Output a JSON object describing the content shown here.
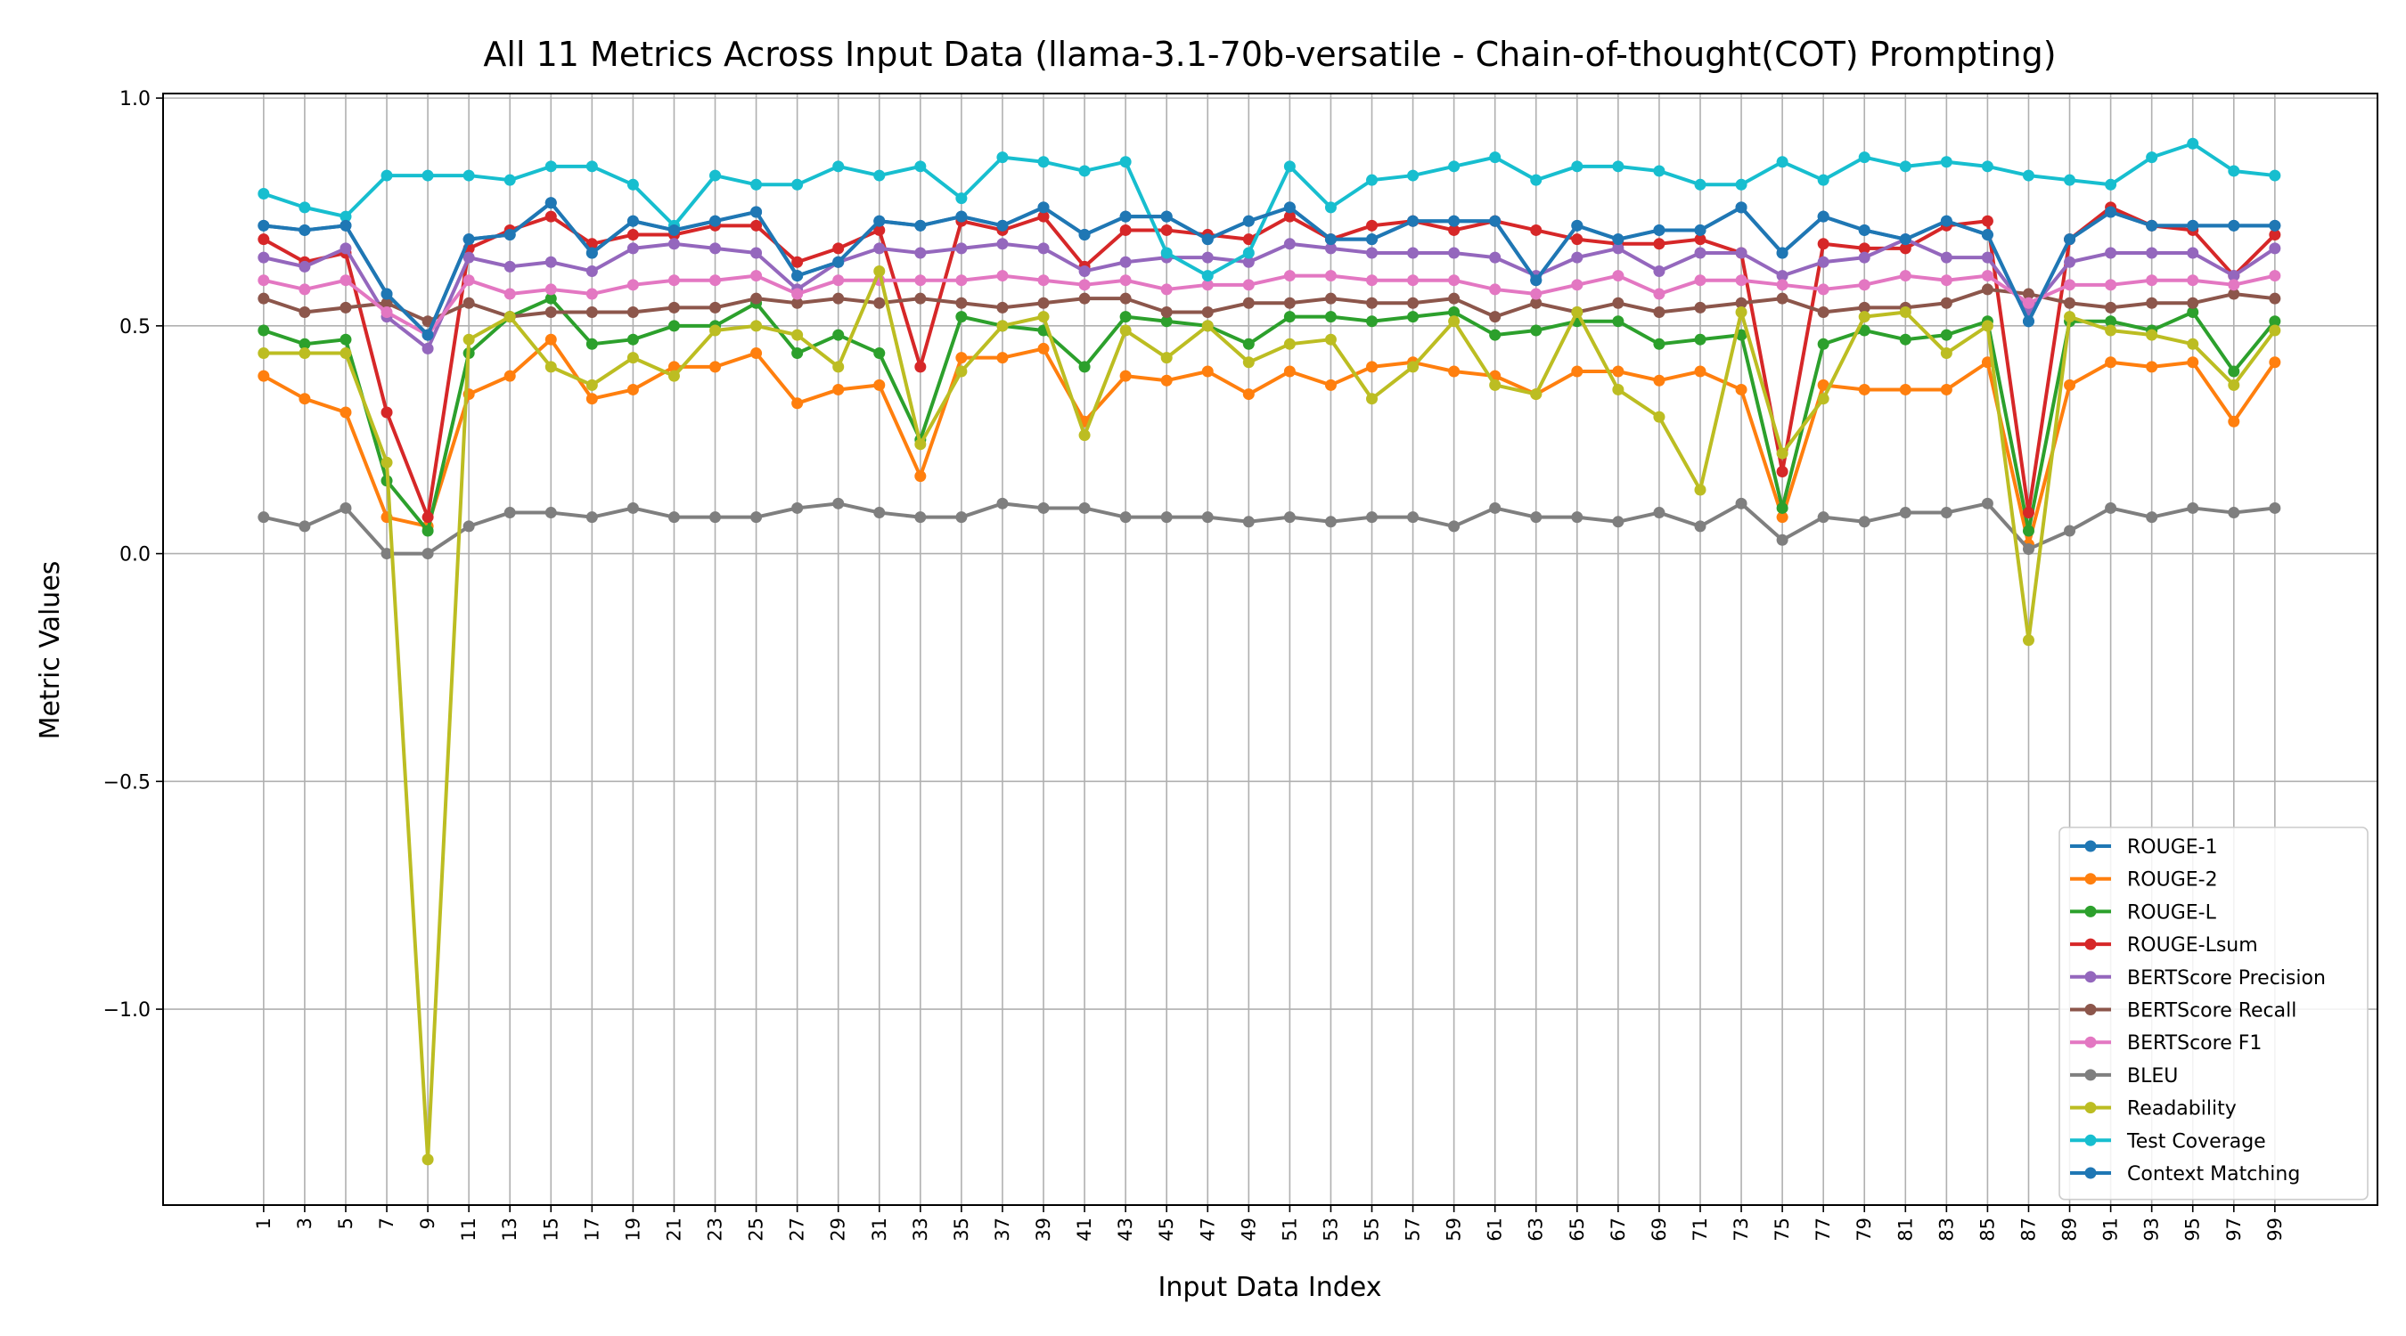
{
  "chart_data": {
    "type": "line",
    "title": "All 11 Metrics Across Input Data (llama-3.1-70b-versatile - Chain-of-thought(COT) Prompting)",
    "xlabel": "Input Data Index",
    "ylabel": "Metric Values",
    "ylim": [
      -1.43,
      1.01
    ],
    "y_ticks": [
      -1.0,
      -0.5,
      0.0,
      0.5,
      1.0
    ],
    "y_tick_labels": [
      "−1.0",
      "−0.5",
      "0.0",
      "0.5",
      "1.0"
    ],
    "x_ticks": [
      1,
      3,
      5,
      7,
      9,
      11,
      13,
      15,
      17,
      19,
      21,
      23,
      25,
      27,
      29,
      31,
      33,
      35,
      37,
      39,
      41,
      43,
      45,
      47,
      49,
      51,
      53,
      55,
      57,
      59,
      61,
      63,
      65,
      67,
      69,
      71,
      73,
      75,
      77,
      79,
      81,
      83,
      85,
      87,
      89,
      91,
      93,
      95,
      97,
      99
    ],
    "x": [
      1,
      3,
      5,
      7,
      9,
      11,
      13,
      15,
      17,
      19,
      21,
      23,
      25,
      27,
      29,
      31,
      33,
      35,
      37,
      39,
      41,
      43,
      45,
      47,
      49,
      51,
      53,
      55,
      57,
      59,
      61,
      63,
      65,
      67,
      69,
      71,
      73,
      75,
      77,
      79,
      81,
      83,
      85,
      87,
      89,
      91,
      93,
      95,
      97,
      99
    ],
    "grid": true,
    "legend_position": "lower-right",
    "series": [
      {
        "name": "ROUGE-1",
        "color": "#1f77b4",
        "values": [
          0.72,
          0.71,
          0.72,
          0.57,
          0.48,
          0.69,
          0.7,
          0.77,
          0.66,
          0.73,
          0.71,
          0.73,
          0.75,
          0.61,
          0.64,
          0.73,
          0.72,
          0.74,
          0.72,
          0.76,
          0.7,
          0.74,
          0.74,
          0.69,
          0.73,
          0.76,
          0.69,
          0.69,
          0.73,
          0.73,
          0.73,
          0.6,
          0.72,
          0.69,
          0.71,
          0.71,
          0.76,
          0.66,
          0.74,
          0.71,
          0.69,
          0.73,
          0.7,
          0.51,
          0.69,
          0.75,
          0.72,
          0.72,
          0.72,
          0.72
        ]
      },
      {
        "name": "ROUGE-2",
        "color": "#ff7f0e",
        "values": [
          0.39,
          0.34,
          0.31,
          0.08,
          0.06,
          0.35,
          0.39,
          0.47,
          0.34,
          0.36,
          0.41,
          0.41,
          0.44,
          0.33,
          0.36,
          0.37,
          0.17,
          0.43,
          0.43,
          0.45,
          0.29,
          0.39,
          0.38,
          0.4,
          0.35,
          0.4,
          0.37,
          0.41,
          0.42,
          0.4,
          0.39,
          0.35,
          0.4,
          0.4,
          0.38,
          0.4,
          0.36,
          0.08,
          0.37,
          0.36,
          0.36,
          0.36,
          0.42,
          0.02,
          0.37,
          0.42,
          0.41,
          0.42,
          0.29,
          0.42
        ]
      },
      {
        "name": "ROUGE-L",
        "color": "#2ca02c",
        "values": [
          0.49,
          0.46,
          0.47,
          0.16,
          0.05,
          0.44,
          0.52,
          0.56,
          0.46,
          0.47,
          0.5,
          0.5,
          0.55,
          0.44,
          0.48,
          0.44,
          0.25,
          0.52,
          0.5,
          0.49,
          0.41,
          0.52,
          0.51,
          0.5,
          0.46,
          0.52,
          0.52,
          0.51,
          0.52,
          0.53,
          0.48,
          0.49,
          0.51,
          0.51,
          0.46,
          0.47,
          0.48,
          0.1,
          0.46,
          0.49,
          0.47,
          0.48,
          0.51,
          0.05,
          0.51,
          0.51,
          0.49,
          0.53,
          0.4,
          0.51
        ]
      },
      {
        "name": "ROUGE-Lsum",
        "color": "#d62728",
        "values": [
          0.69,
          0.64,
          0.66,
          0.31,
          0.08,
          0.67,
          0.71,
          0.74,
          0.68,
          0.7,
          0.7,
          0.72,
          0.72,
          0.64,
          0.67,
          0.71,
          0.41,
          0.73,
          0.71,
          0.74,
          0.63,
          0.71,
          0.71,
          0.7,
          0.69,
          0.74,
          0.69,
          0.72,
          0.73,
          0.71,
          0.73,
          0.71,
          0.69,
          0.68,
          0.68,
          0.69,
          0.66,
          0.18,
          0.68,
          0.67,
          0.67,
          0.72,
          0.73,
          0.09,
          0.69,
          0.76,
          0.72,
          0.71,
          0.61,
          0.7
        ]
      },
      {
        "name": "BERTScore Precision",
        "color": "#9467bd",
        "values": [
          0.65,
          0.63,
          0.67,
          0.52,
          0.45,
          0.65,
          0.63,
          0.64,
          0.62,
          0.67,
          0.68,
          0.67,
          0.66,
          0.58,
          0.64,
          0.67,
          0.66,
          0.67,
          0.68,
          0.67,
          0.62,
          0.64,
          0.65,
          0.65,
          0.64,
          0.68,
          0.67,
          0.66,
          0.66,
          0.66,
          0.65,
          0.61,
          0.65,
          0.67,
          0.62,
          0.66,
          0.66,
          0.61,
          0.64,
          0.65,
          0.69,
          0.65,
          0.65,
          0.53,
          0.64,
          0.66,
          0.66,
          0.66,
          0.61,
          0.67
        ]
      },
      {
        "name": "BERTScore Recall",
        "color": "#8c564b",
        "values": [
          0.56,
          0.53,
          0.54,
          0.55,
          0.51,
          0.55,
          0.52,
          0.53,
          0.53,
          0.53,
          0.54,
          0.54,
          0.56,
          0.55,
          0.56,
          0.55,
          0.56,
          0.55,
          0.54,
          0.55,
          0.56,
          0.56,
          0.53,
          0.53,
          0.55,
          0.55,
          0.56,
          0.55,
          0.55,
          0.56,
          0.52,
          0.55,
          0.53,
          0.55,
          0.53,
          0.54,
          0.55,
          0.56,
          0.53,
          0.54,
          0.54,
          0.55,
          0.58,
          0.57,
          0.55,
          0.54,
          0.55,
          0.55,
          0.57,
          0.56
        ]
      },
      {
        "name": "BERTScore F1",
        "color": "#e377c2",
        "values": [
          0.6,
          0.58,
          0.6,
          0.53,
          0.48,
          0.6,
          0.57,
          0.58,
          0.57,
          0.59,
          0.6,
          0.6,
          0.61,
          0.57,
          0.6,
          0.6,
          0.6,
          0.6,
          0.61,
          0.6,
          0.59,
          0.6,
          0.58,
          0.59,
          0.59,
          0.61,
          0.61,
          0.6,
          0.6,
          0.6,
          0.58,
          0.57,
          0.59,
          0.61,
          0.57,
          0.6,
          0.6,
          0.59,
          0.58,
          0.59,
          0.61,
          0.6,
          0.61,
          0.55,
          0.59,
          0.59,
          0.6,
          0.6,
          0.59,
          0.61
        ]
      },
      {
        "name": "BLEU",
        "color": "#7f7f7f",
        "values": [
          0.08,
          0.06,
          0.1,
          0.0,
          0.0,
          0.06,
          0.09,
          0.09,
          0.08,
          0.1,
          0.08,
          0.08,
          0.08,
          0.1,
          0.11,
          0.09,
          0.08,
          0.08,
          0.11,
          0.1,
          0.1,
          0.08,
          0.08,
          0.08,
          0.07,
          0.08,
          0.07,
          0.08,
          0.08,
          0.06,
          0.1,
          0.08,
          0.08,
          0.07,
          0.09,
          0.06,
          0.11,
          0.03,
          0.08,
          0.07,
          0.09,
          0.09,
          0.11,
          0.01,
          0.05,
          0.1,
          0.08,
          0.1,
          0.09,
          0.1
        ]
      },
      {
        "name": "Readability",
        "color": "#bcbd22",
        "values": [
          0.44,
          0.44,
          0.44,
          0.2,
          -1.33,
          0.47,
          0.52,
          0.41,
          0.37,
          0.43,
          0.39,
          0.49,
          0.5,
          0.48,
          0.41,
          0.62,
          0.24,
          0.4,
          0.5,
          0.52,
          0.26,
          0.49,
          0.43,
          0.5,
          0.42,
          0.46,
          0.47,
          0.34,
          0.41,
          0.51,
          0.37,
          0.35,
          0.53,
          0.36,
          0.3,
          0.14,
          0.53,
          0.22,
          0.34,
          0.52,
          0.53,
          0.44,
          0.5,
          -0.19,
          0.52,
          0.49,
          0.48,
          0.46,
          0.37,
          0.49
        ]
      },
      {
        "name": "Test Coverage",
        "color": "#17becf",
        "values": [
          0.79,
          0.76,
          0.74,
          0.83,
          0.83,
          0.83,
          0.82,
          0.85,
          0.85,
          0.81,
          0.72,
          0.83,
          0.81,
          0.81,
          0.85,
          0.83,
          0.85,
          0.78,
          0.87,
          0.86,
          0.84,
          0.86,
          0.66,
          0.61,
          0.66,
          0.85,
          0.76,
          0.82,
          0.83,
          0.85,
          0.87,
          0.82,
          0.85,
          0.85,
          0.84,
          0.81,
          0.81,
          0.86,
          0.82,
          0.87,
          0.85,
          0.86,
          0.85,
          0.83,
          0.82,
          0.81,
          0.87,
          0.9,
          0.84,
          0.83
        ]
      },
      {
        "name": "Context Matching",
        "color": "#1f77b4",
        "values": [
          0.72,
          0.71,
          0.72,
          0.57,
          0.48,
          0.69,
          0.7,
          0.77,
          0.66,
          0.73,
          0.71,
          0.73,
          0.75,
          0.61,
          0.64,
          0.73,
          0.72,
          0.74,
          0.72,
          0.76,
          0.7,
          0.74,
          0.74,
          0.69,
          0.73,
          0.76,
          0.69,
          0.69,
          0.73,
          0.73,
          0.73,
          0.6,
          0.72,
          0.69,
          0.71,
          0.71,
          0.76,
          0.66,
          0.74,
          0.71,
          0.69,
          0.73,
          0.7,
          0.51,
          0.69,
          0.75,
          0.72,
          0.72,
          0.72,
          0.72
        ]
      }
    ]
  }
}
